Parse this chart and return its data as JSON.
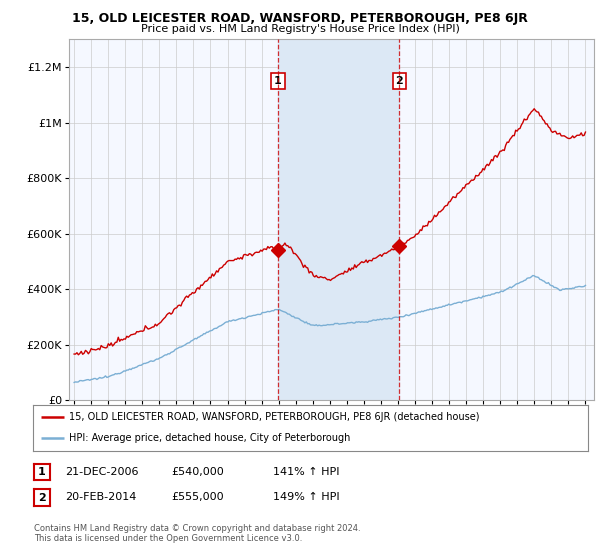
{
  "title": "15, OLD LEICESTER ROAD, WANSFORD, PETERBOROUGH, PE8 6JR",
  "subtitle": "Price paid vs. HM Land Registry's House Price Index (HPI)",
  "ylabel_ticks": [
    "£0",
    "£200K",
    "£400K",
    "£600K",
    "£800K",
    "£1M",
    "£1.2M"
  ],
  "ytick_values": [
    0,
    200000,
    400000,
    600000,
    800000,
    1000000,
    1200000
  ],
  "ylim": [
    0,
    1300000
  ],
  "sale1_year": 2006.958,
  "sale1_price": 540000,
  "sale1_date": "21-DEC-2006",
  "sale1_hpi": "141% ↑ HPI",
  "sale2_year": 2014.083,
  "sale2_price": 555000,
  "sale2_date": "20-FEB-2014",
  "sale2_hpi": "149% ↑ HPI",
  "legend_red": "15, OLD LEICESTER ROAD, WANSFORD, PETERBOROUGH, PE8 6JR (detached house)",
  "legend_blue": "HPI: Average price, detached house, City of Peterborough",
  "footer1": "Contains HM Land Registry data © Crown copyright and database right 2024.",
  "footer2": "This data is licensed under the Open Government Licence v3.0.",
  "red_color": "#cc0000",
  "blue_color": "#7bafd4",
  "shade_color": "#dce8f5",
  "vline_color": "#cc0000",
  "background_color": "#ffffff",
  "plot_bg_color": "#f5f8ff",
  "grid_color": "#cccccc",
  "xlim_left": 1994.7,
  "xlim_right": 2025.5
}
